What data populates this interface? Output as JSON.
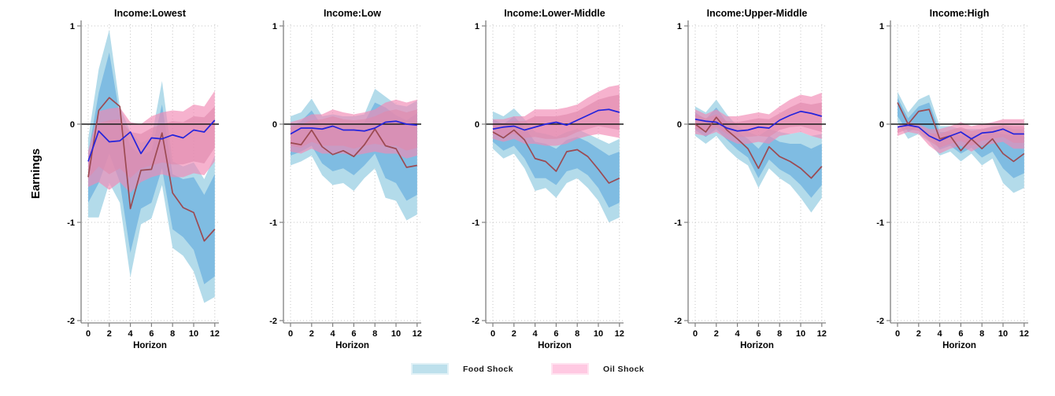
{
  "chart_data": {
    "type": "line",
    "layout": "5 small-multiple panels, shared y-axis scale, 90% and 68% confidence bands",
    "ylabel": "Earnings",
    "xlabel": "Horizon",
    "x": [
      0,
      1,
      2,
      3,
      4,
      5,
      6,
      7,
      8,
      9,
      10,
      11,
      12
    ],
    "xticks": [
      0,
      2,
      4,
      6,
      8,
      10,
      12
    ],
    "yticks": [
      1,
      0,
      -1,
      -2
    ],
    "ylim": [
      -2.02,
      1.06
    ],
    "grid": "dotted gridlines at every labeled tick; solid black reference line at y=0",
    "legend_position": "bottom-center",
    "legend": [
      {
        "label": "Food Shock",
        "color": "#BDE0EC",
        "border": "#E2F1F6"
      },
      {
        "label": "Oil Shock",
        "color": "#FFC9E2",
        "border": "#FFE3F0"
      }
    ],
    "colors": {
      "food_line": "#2424DC",
      "oil_line": "#9C4A52",
      "blue_band_outer": "#B3DBEA",
      "blue_band_inner": "#7FBCE2",
      "pink_band_outer": "#F189B4",
      "pink_band_inner": "#E08AAE",
      "zero_line": "#1A1A1A",
      "gridline": "#C4C4C4",
      "axis": "#808080"
    },
    "panels": [
      {
        "title": "Income:Lowest",
        "lines": {
          "food": [
            -0.38,
            -0.07,
            -0.18,
            -0.17,
            -0.08,
            -0.3,
            -0.14,
            -0.15,
            -0.11,
            -0.14,
            -0.06,
            -0.08,
            0.04
          ],
          "oil": [
            -0.54,
            0.14,
            0.27,
            0.18,
            -0.86,
            -0.47,
            -0.46,
            -0.09,
            -0.7,
            -0.85,
            -0.9,
            -1.19,
            -1.07
          ]
        },
        "bands": {
          "blue_outer": {
            "upper": [
              -0.15,
              0.56,
              0.96,
              0.18,
              -0.08,
              -0.19,
              -0.14,
              0.44,
              -0.38,
              -0.43,
              -0.39,
              -0.56,
              -0.32
            ],
            "lower": [
              -0.95,
              -0.95,
              -0.6,
              -0.8,
              -1.56,
              -1.02,
              -0.96,
              -0.62,
              -1.26,
              -1.34,
              -1.5,
              -1.82,
              -1.76
            ]
          },
          "blue_inner": {
            "upper": [
              -0.3,
              0.32,
              0.73,
              0.08,
              -0.22,
              -0.32,
              -0.27,
              0.2,
              -0.51,
              -0.56,
              -0.54,
              -0.72,
              -0.51
            ],
            "lower": [
              -0.8,
              -0.6,
              -0.3,
              -0.59,
              -1.31,
              -0.86,
              -0.8,
              -0.45,
              -1.07,
              -1.15,
              -1.28,
              -1.63,
              -1.55
            ]
          },
          "pink_outer": {
            "upper": [
              -0.27,
              0.13,
              0.16,
              0.17,
              0.02,
              0.0,
              0.08,
              0.12,
              0.14,
              0.13,
              0.2,
              0.18,
              0.34
            ],
            "lower": [
              -0.64,
              -0.59,
              -0.67,
              -0.59,
              -0.7,
              -0.59,
              -0.54,
              -0.51,
              -0.54,
              -0.54,
              -0.5,
              -0.52,
              -0.38
            ]
          },
          "pink_inner": {
            "upper": [
              -0.35,
              0.01,
              0.04,
              0.05,
              -0.08,
              -0.1,
              -0.04,
              0.0,
              0.03,
              0.02,
              0.08,
              0.07,
              0.18
            ],
            "lower": [
              -0.55,
              -0.43,
              -0.51,
              -0.45,
              -0.55,
              -0.45,
              -0.42,
              -0.39,
              -0.41,
              -0.41,
              -0.38,
              -0.4,
              -0.24
            ]
          }
        }
      },
      {
        "title": "Income:Low",
        "lines": {
          "food": [
            -0.1,
            -0.04,
            -0.04,
            -0.05,
            -0.02,
            -0.06,
            -0.06,
            -0.07,
            -0.04,
            0.02,
            0.03,
            0.0,
            -0.01
          ],
          "oil": [
            -0.19,
            -0.21,
            -0.06,
            -0.23,
            -0.31,
            -0.27,
            -0.33,
            -0.21,
            -0.05,
            -0.22,
            -0.25,
            -0.44,
            -0.42
          ]
        },
        "bands": {
          "blue_outer": {
            "upper": [
              0.08,
              0.12,
              0.26,
              0.08,
              0.1,
              0.08,
              0.08,
              0.1,
              0.36,
              0.28,
              0.2,
              0.18,
              0.24
            ],
            "lower": [
              -0.42,
              -0.38,
              -0.32,
              -0.52,
              -0.62,
              -0.6,
              -0.68,
              -0.55,
              -0.45,
              -0.75,
              -0.78,
              -0.98,
              -0.92
            ]
          },
          "blue_inner": {
            "upper": [
              -0.02,
              0.03,
              0.14,
              -0.02,
              0.01,
              0.0,
              0.0,
              0.02,
              0.22,
              0.17,
              0.09,
              0.04,
              0.11
            ],
            "lower": [
              -0.32,
              -0.28,
              -0.22,
              -0.4,
              -0.48,
              -0.45,
              -0.52,
              -0.42,
              -0.3,
              -0.55,
              -0.6,
              -0.78,
              -0.72
            ]
          },
          "pink_outer": {
            "upper": [
              0.02,
              0.05,
              0.1,
              0.1,
              0.15,
              0.12,
              0.1,
              0.12,
              0.15,
              0.22,
              0.25,
              0.22,
              0.25
            ],
            "lower": [
              -0.28,
              -0.3,
              -0.25,
              -0.3,
              -0.3,
              -0.3,
              -0.32,
              -0.3,
              -0.28,
              -0.3,
              -0.3,
              -0.35,
              -0.32
            ]
          },
          "pink_inner": {
            "upper": [
              -0.03,
              0.0,
              0.04,
              0.05,
              0.08,
              0.05,
              0.04,
              0.05,
              0.08,
              0.13,
              0.15,
              0.12,
              0.15
            ],
            "lower": [
              -0.22,
              -0.24,
              -0.18,
              -0.22,
              -0.22,
              -0.22,
              -0.25,
              -0.22,
              -0.2,
              -0.22,
              -0.22,
              -0.27,
              -0.24
            ]
          }
        }
      },
      {
        "title": "Income:Lower-Middle",
        "lines": {
          "food": [
            -0.05,
            -0.03,
            -0.02,
            -0.06,
            -0.03,
            0.0,
            0.02,
            -0.01,
            0.04,
            0.09,
            0.14,
            0.15,
            0.12
          ],
          "oil": [
            -0.08,
            -0.14,
            -0.06,
            -0.16,
            -0.35,
            -0.38,
            -0.48,
            -0.28,
            -0.26,
            -0.33,
            -0.46,
            -0.6,
            -0.55
          ]
        },
        "bands": {
          "blue_outer": {
            "upper": [
              0.13,
              0.08,
              0.16,
              0.05,
              -0.08,
              -0.1,
              -0.13,
              -0.08,
              -0.05,
              -0.1,
              -0.15,
              -0.2,
              -0.15
            ],
            "lower": [
              -0.25,
              -0.35,
              -0.3,
              -0.45,
              -0.68,
              -0.65,
              -0.75,
              -0.6,
              -0.55,
              -0.65,
              -0.78,
              -1.0,
              -0.95
            ]
          },
          "blue_inner": {
            "upper": [
              0.05,
              0.0,
              0.08,
              -0.03,
              -0.18,
              -0.2,
              -0.25,
              -0.16,
              -0.13,
              -0.18,
              -0.25,
              -0.32,
              -0.28
            ],
            "lower": [
              -0.18,
              -0.27,
              -0.22,
              -0.35,
              -0.55,
              -0.55,
              -0.62,
              -0.48,
              -0.45,
              -0.52,
              -0.65,
              -0.85,
              -0.8
            ]
          },
          "pink_outer": {
            "upper": [
              0.05,
              0.05,
              0.08,
              0.08,
              0.15,
              0.15,
              0.15,
              0.17,
              0.2,
              0.27,
              0.33,
              0.38,
              0.4
            ],
            "lower": [
              -0.15,
              -0.18,
              -0.15,
              -0.2,
              -0.2,
              -0.22,
              -0.22,
              -0.2,
              -0.15,
              -0.12,
              -0.1,
              -0.12,
              -0.14
            ]
          },
          "pink_inner": {
            "upper": [
              0.01,
              0.01,
              0.03,
              0.03,
              0.08,
              0.08,
              0.08,
              0.1,
              0.13,
              0.19,
              0.25,
              0.28,
              0.3
            ],
            "lower": [
              -0.1,
              -0.12,
              -0.1,
              -0.14,
              -0.13,
              -0.15,
              -0.15,
              -0.13,
              -0.08,
              -0.05,
              -0.02,
              -0.04,
              -0.06
            ]
          }
        }
      },
      {
        "title": "Income:Upper-Middle",
        "lines": {
          "food": [
            0.05,
            0.03,
            0.02,
            -0.04,
            -0.07,
            -0.06,
            -0.03,
            -0.04,
            0.04,
            0.09,
            0.13,
            0.11,
            0.08
          ],
          "oil": [
            0.0,
            -0.08,
            0.07,
            -0.06,
            -0.15,
            -0.25,
            -0.45,
            -0.23,
            -0.33,
            -0.38,
            -0.45,
            -0.55,
            -0.43
          ]
        },
        "bands": {
          "blue_outer": {
            "upper": [
              0.18,
              0.12,
              0.25,
              0.1,
              -0.02,
              -0.08,
              -0.12,
              -0.05,
              -0.08,
              -0.1,
              -0.08,
              -0.12,
              -0.1
            ],
            "lower": [
              -0.12,
              -0.2,
              -0.12,
              -0.25,
              -0.35,
              -0.42,
              -0.65,
              -0.45,
              -0.55,
              -0.62,
              -0.75,
              -0.9,
              -0.75
            ]
          },
          "blue_inner": {
            "upper": [
              0.12,
              0.05,
              0.17,
              0.02,
              -0.08,
              -0.15,
              -0.25,
              -0.12,
              -0.18,
              -0.2,
              -0.2,
              -0.25,
              -0.2
            ],
            "lower": [
              -0.06,
              -0.13,
              -0.05,
              -0.16,
              -0.26,
              -0.34,
              -0.55,
              -0.36,
              -0.46,
              -0.52,
              -0.62,
              -0.75,
              -0.62
            ]
          },
          "pink_outer": {
            "upper": [
              0.15,
              0.1,
              0.15,
              0.08,
              0.08,
              0.1,
              0.12,
              0.1,
              0.18,
              0.25,
              0.3,
              0.28,
              0.32
            ],
            "lower": [
              -0.1,
              -0.12,
              -0.08,
              -0.15,
              -0.2,
              -0.2,
              -0.18,
              -0.2,
              -0.12,
              -0.1,
              -0.08,
              -0.12,
              -0.15
            ]
          },
          "pink_inner": {
            "upper": [
              0.1,
              0.06,
              0.1,
              0.03,
              0.02,
              0.04,
              0.06,
              0.05,
              0.11,
              0.17,
              0.22,
              0.2,
              0.22
            ],
            "lower": [
              -0.05,
              -0.07,
              -0.03,
              -0.1,
              -0.13,
              -0.13,
              -0.12,
              -0.13,
              -0.06,
              -0.03,
              -0.02,
              -0.05,
              -0.08
            ]
          }
        }
      },
      {
        "title": "Income:High",
        "lines": {
          "food": [
            -0.03,
            -0.01,
            -0.03,
            -0.12,
            -0.17,
            -0.12,
            -0.08,
            -0.15,
            -0.09,
            -0.08,
            -0.05,
            -0.1,
            -0.1
          ],
          "oil": [
            0.22,
            0.0,
            0.13,
            0.15,
            -0.15,
            -0.12,
            -0.27,
            -0.15,
            -0.25,
            -0.15,
            -0.3,
            -0.38,
            -0.3
          ]
        },
        "bands": {
          "blue_outer": {
            "upper": [
              0.33,
              0.12,
              0.25,
              0.3,
              -0.02,
              -0.02,
              -0.05,
              -0.05,
              -0.05,
              -0.02,
              -0.02,
              -0.05,
              -0.05
            ],
            "lower": [
              0.02,
              -0.15,
              -0.1,
              -0.18,
              -0.32,
              -0.28,
              -0.38,
              -0.3,
              -0.42,
              -0.35,
              -0.6,
              -0.7,
              -0.65
            ]
          },
          "blue_inner": {
            "upper": [
              0.27,
              0.06,
              0.18,
              0.22,
              -0.08,
              -0.08,
              -0.12,
              -0.1,
              -0.12,
              -0.08,
              -0.1,
              -0.12,
              -0.12
            ],
            "lower": [
              0.08,
              -0.08,
              -0.03,
              -0.1,
              -0.26,
              -0.22,
              -0.3,
              -0.24,
              -0.34,
              -0.28,
              -0.45,
              -0.55,
              -0.5
            ]
          },
          "pink_outer": {
            "upper": [
              -0.02,
              0.02,
              0.0,
              -0.05,
              -0.05,
              -0.02,
              0.02,
              -0.02,
              0.0,
              0.02,
              0.05,
              0.05,
              0.05
            ],
            "lower": [
              -0.12,
              -0.08,
              -0.1,
              -0.22,
              -0.3,
              -0.25,
              -0.22,
              -0.28,
              -0.22,
              -0.2,
              -0.18,
              -0.25,
              -0.25
            ]
          },
          "pink_inner": {
            "upper": [
              -0.05,
              -0.01,
              -0.03,
              -0.09,
              -0.1,
              -0.06,
              -0.03,
              -0.07,
              -0.05,
              -0.03,
              -0.01,
              -0.02,
              -0.02
            ],
            "lower": [
              -0.09,
              -0.05,
              -0.07,
              -0.17,
              -0.24,
              -0.2,
              -0.17,
              -0.22,
              -0.17,
              -0.15,
              -0.13,
              -0.19,
              -0.19
            ]
          }
        }
      }
    ]
  }
}
